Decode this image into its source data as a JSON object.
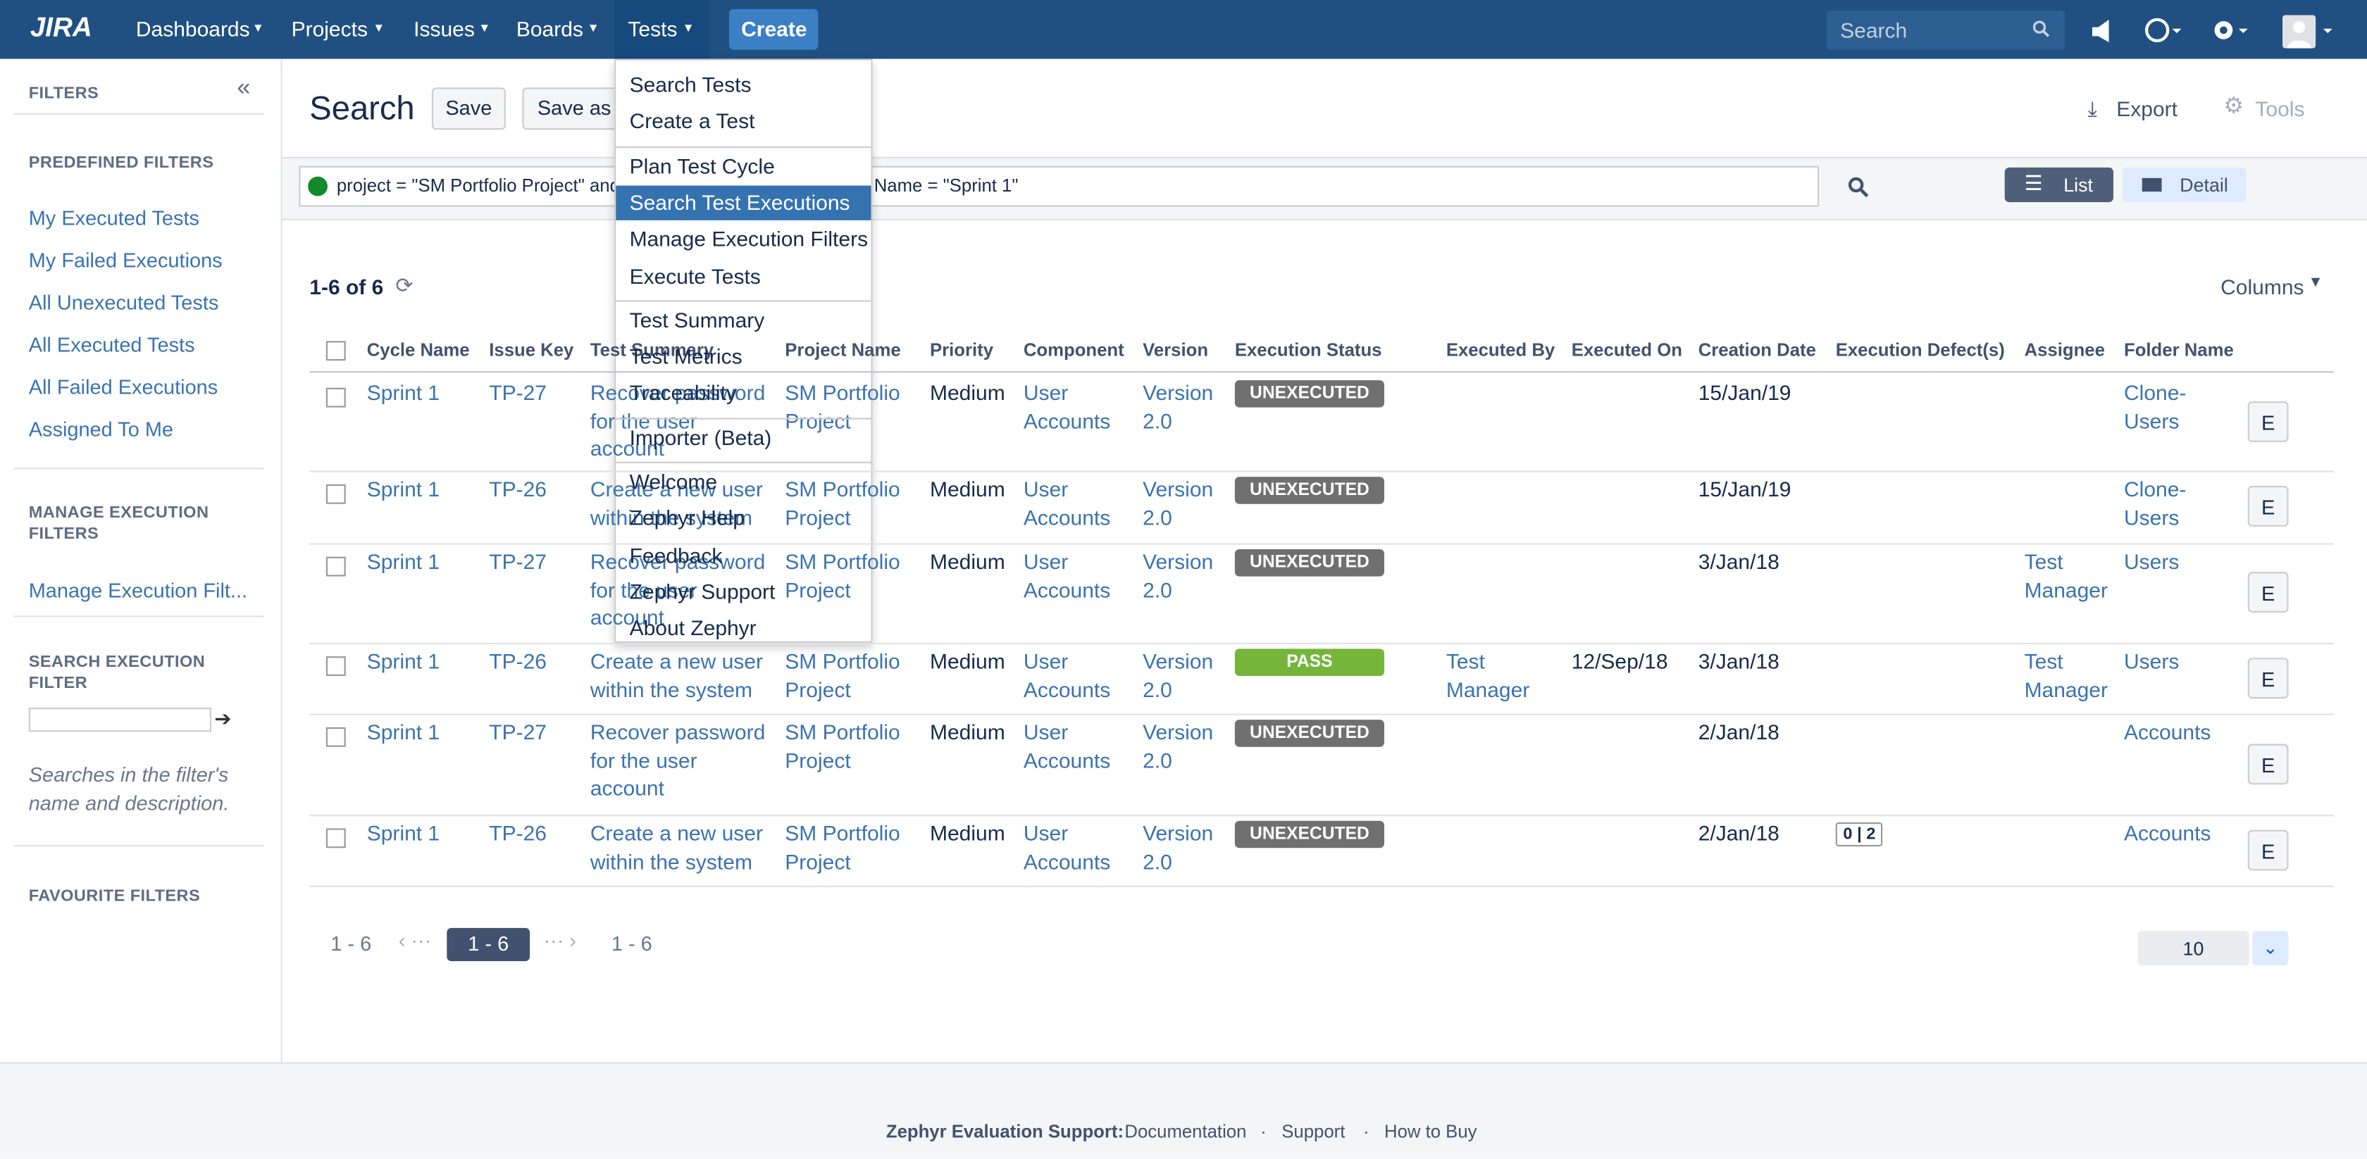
{
  "header": {
    "logo": "JIRA",
    "nav": [
      "Dashboards",
      "Projects",
      "Issues",
      "Boards",
      "Tests"
    ],
    "create": "Create",
    "search": "Search"
  },
  "sidebar": {
    "title": "FILTERS",
    "predefined_title": "PREDEFINED FILTERS",
    "predefined": [
      "My Executed Tests",
      "My Failed Executions",
      "All Unexecuted Tests",
      "All Executed Tests",
      "All Failed Executions",
      "Assigned To Me"
    ],
    "manage_title": "MANAGE EXECUTION FILTERS",
    "manage": [
      "Manage Execution Filt..."
    ],
    "search_title": "SEARCH EXECUTION FILTER",
    "search_hint": "Searches in the filter's name and description.",
    "favourite_title": "FAVOURITE FILTERS"
  },
  "main": {
    "title": "Search",
    "save": "Save",
    "save_as": "Save as",
    "export": "Export",
    "tools": "Tools",
    "query_start": "project = \"SM Portfolio Project\" and fi",
    "query_end": "Name = \"Sprint 1\"",
    "view_list": "List",
    "view_detail": "Detail",
    "count": "1-6 of 6",
    "columns": "Columns"
  },
  "table": {
    "headers": [
      "Cycle Name",
      "Issue Key",
      "Test Summary",
      "Project Name",
      "Priority",
      "Component",
      "Version",
      "Execution Status",
      "Executed By",
      "Executed On",
      "Creation Date",
      "Execution Defect(s)",
      "Assignee",
      "Folder Name"
    ],
    "edit_label": "E",
    "rows": [
      [
        "Sprint 1",
        "TP-27",
        "Recover password for the user account",
        "SM Portfolio Project",
        "Medium",
        "User Accounts",
        "Version 2.0",
        "UNEXECUTED",
        null,
        null,
        "15/Jan/19",
        null,
        null,
        "Clone-Users"
      ],
      [
        "Sprint 1",
        "TP-26",
        "Create a new user within the system",
        "SM Portfolio Project",
        "Medium",
        "User Accounts",
        "Version 2.0",
        "UNEXECUTED",
        null,
        null,
        "15/Jan/19",
        null,
        null,
        "Clone-Users"
      ],
      [
        "Sprint 1",
        "TP-27",
        "Recover password for the user account",
        "SM Portfolio Project",
        "Medium",
        "User Accounts",
        "Version 2.0",
        "UNEXECUTED",
        null,
        null,
        "3/Jan/18",
        null,
        "Test Manager",
        "Users"
      ],
      [
        "Sprint 1",
        "TP-26",
        "Create a new user within the system",
        "SM Portfolio Project",
        "Medium",
        "User Accounts",
        "Version 2.0",
        "PASS",
        "Test Manager",
        "12/Sep/18",
        "3/Jan/18",
        null,
        "Test Manager",
        "Users"
      ],
      [
        "Sprint 1",
        "TP-27",
        "Recover password for the user account",
        "SM Portfolio Project",
        "Medium",
        "User Accounts",
        "Version 2.0",
        "UNEXECUTED",
        null,
        null,
        "2/Jan/18",
        null,
        null,
        "Accounts"
      ],
      [
        "Sprint 1",
        "TP-26",
        "Create a new user within the system",
        "SM Portfolio Project",
        "Medium",
        "User Accounts",
        "Version 2.0",
        "UNEXECUTED",
        null,
        null,
        "2/Jan/18",
        "0 | 2",
        null,
        "Accounts"
      ]
    ]
  },
  "pagination": {
    "first": "1 - 6",
    "current": "1 - 6",
    "last": "1 - 6",
    "page_size": "10"
  },
  "menu": {
    "groups": [
      [
        "Search Tests",
        "Create a Test"
      ],
      [
        "Plan Test Cycle",
        "Search Test Executions",
        "Manage Execution Filters",
        "Execute Tests"
      ],
      [
        "Test Summary",
        "Test Metrics",
        "Traceability"
      ],
      [
        "Importer (Beta)"
      ],
      [
        "Welcome",
        "Zephyr Help",
        "Feedback",
        "Zephyr Support",
        "About Zephyr"
      ]
    ],
    "active": "Search Test Executions"
  },
  "footer": {
    "label": "Zephyr Evaluation Support:",
    "links": [
      "Documentation",
      "Support",
      "How to Buy"
    ]
  }
}
